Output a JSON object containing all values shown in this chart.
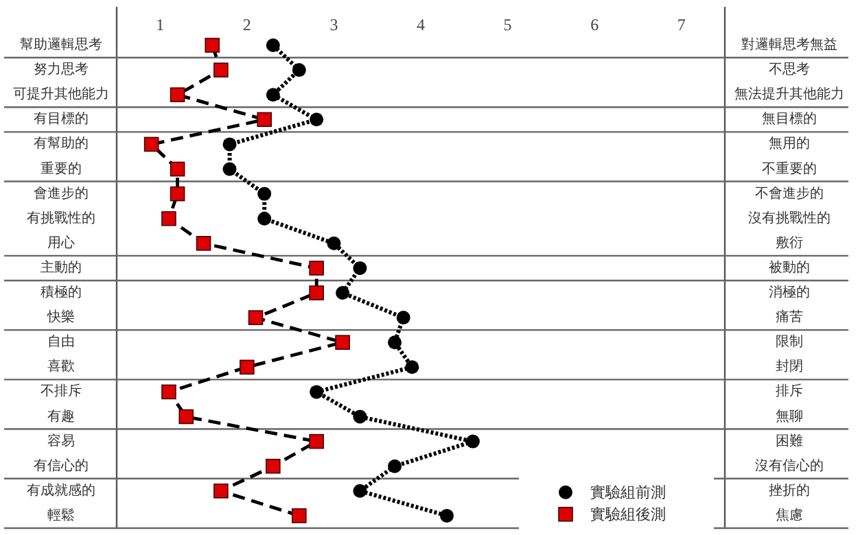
{
  "chart_data": {
    "type": "line",
    "orientation": "horizontal",
    "categories": [
      "幫助邏輯思考",
      "努力思考",
      "可提升其他能力",
      "有目標的",
      "有幫助的",
      "重要的",
      "會進步的",
      "有挑戰性的",
      "用心",
      "主動的",
      "積極的",
      "快樂",
      "自由",
      "喜歡",
      "不排斥",
      "有趣",
      "容易",
      "有信心的",
      "有成就感的",
      "輕鬆"
    ],
    "y2_categories": [
      "對邏輯思考無益",
      "不思考",
      "無法提升其他能力",
      "無目標的",
      "無用的",
      "不重要的",
      "不會進步的",
      "沒有挑戰性的",
      "敷衍",
      "被動的",
      "消極的",
      "痛苦",
      "限制",
      "封閉",
      "排斥",
      "無聊",
      "困難",
      "沒有信心的",
      "挫折的",
      "焦慮"
    ],
    "series": [
      {
        "name": "實驗組前測",
        "color": "#000000",
        "marker": "circle",
        "line_style": "dotted",
        "values": [
          2.3,
          2.6,
          2.3,
          2.8,
          1.8,
          1.8,
          2.2,
          2.2,
          3.0,
          3.3,
          3.1,
          3.8,
          3.7,
          3.9,
          2.8,
          3.3,
          4.6,
          3.7,
          3.3,
          4.3
        ]
      },
      {
        "name": "實驗組後測",
        "color": "#dd0000",
        "marker": "square",
        "line_style": "dashed",
        "values": [
          1.6,
          1.7,
          1.2,
          2.2,
          0.9,
          1.2,
          1.2,
          1.1,
          1.5,
          2.8,
          2.8,
          2.1,
          3.1,
          2.0,
          1.1,
          1.3,
          2.8,
          2.3,
          1.7,
          2.6
        ]
      }
    ],
    "xlim": [
      0.5,
      7.5
    ],
    "xticks": [
      1,
      2,
      3,
      4,
      5,
      6,
      7
    ],
    "legend": "bottom right",
    "grid": false
  }
}
